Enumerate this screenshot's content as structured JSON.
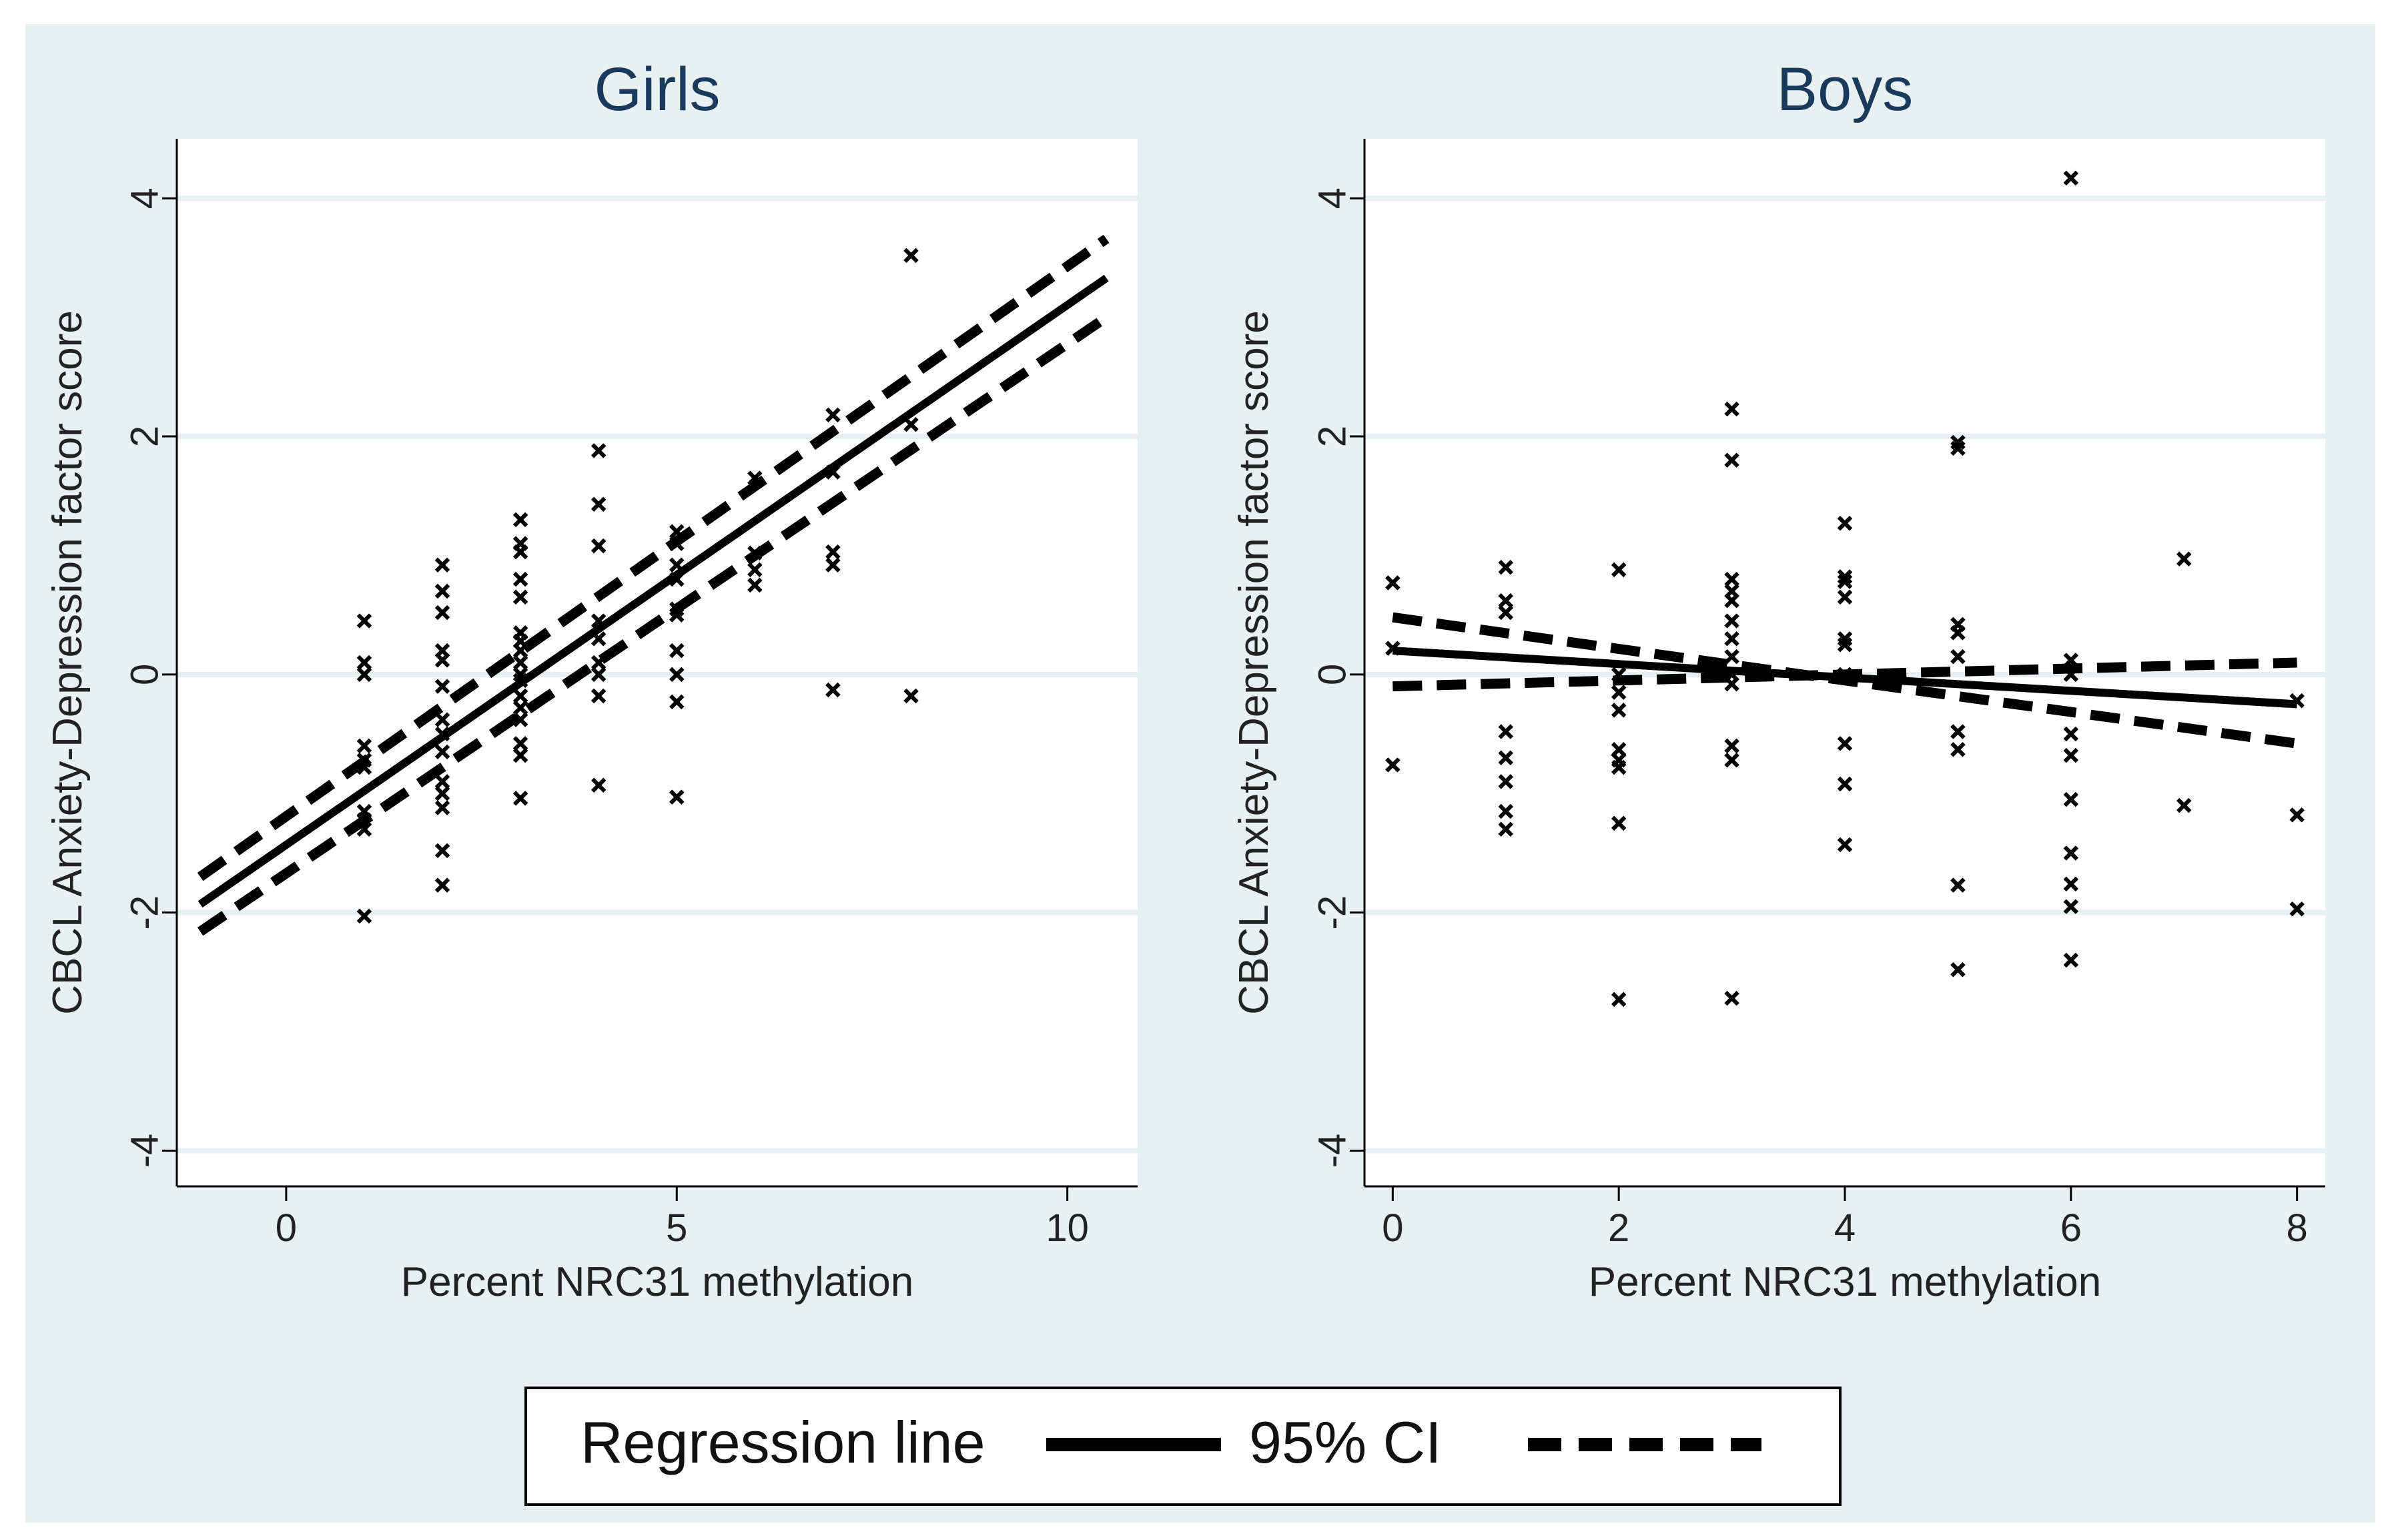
{
  "chart_data": [
    {
      "type": "scatter",
      "title": "Girls",
      "xlabel": "Percent NRC31 methylation",
      "ylabel": "CBCL Anxiety-Depression factor score",
      "xlim": [
        -1.4,
        10.9
      ],
      "ylim": [
        -4.3,
        4.5
      ],
      "xticks": [
        0,
        5,
        10
      ],
      "yticks": [
        -4,
        -2,
        0,
        2,
        4
      ],
      "grid": true,
      "points": [
        [
          1,
          0.45
        ],
        [
          1,
          0.1
        ],
        [
          1,
          0.0
        ],
        [
          1,
          -0.6
        ],
        [
          1,
          -0.72
        ],
        [
          1,
          -0.78
        ],
        [
          1,
          -1.15
        ],
        [
          1,
          -1.22
        ],
        [
          1,
          -1.3
        ],
        [
          1,
          -2.03
        ],
        [
          2,
          0.92
        ],
        [
          2,
          0.7
        ],
        [
          2,
          0.52
        ],
        [
          2,
          0.2
        ],
        [
          2,
          0.12
        ],
        [
          2,
          -0.1
        ],
        [
          2,
          -0.38
        ],
        [
          2,
          -0.5
        ],
        [
          2,
          -0.65
        ],
        [
          2,
          -0.9
        ],
        [
          2,
          -1.0
        ],
        [
          2,
          -1.12
        ],
        [
          2,
          -1.48
        ],
        [
          2,
          -1.77
        ],
        [
          3,
          1.3
        ],
        [
          3,
          1.1
        ],
        [
          3,
          1.03
        ],
        [
          3,
          0.8
        ],
        [
          3,
          0.65
        ],
        [
          3,
          0.35
        ],
        [
          3,
          0.28
        ],
        [
          3,
          0.2
        ],
        [
          3,
          0.1
        ],
        [
          3,
          0.0
        ],
        [
          3,
          -0.05
        ],
        [
          3,
          -0.18
        ],
        [
          3,
          -0.28
        ],
        [
          3,
          -0.38
        ],
        [
          3,
          -0.58
        ],
        [
          3,
          -0.68
        ],
        [
          3,
          -1.04
        ],
        [
          4,
          1.88
        ],
        [
          4,
          1.43
        ],
        [
          4,
          1.08
        ],
        [
          4,
          0.45
        ],
        [
          4,
          0.3
        ],
        [
          4,
          0.1
        ],
        [
          4,
          0.0
        ],
        [
          4,
          -0.18
        ],
        [
          4,
          -0.93
        ],
        [
          5,
          1.2
        ],
        [
          5,
          1.1
        ],
        [
          5,
          0.92
        ],
        [
          5,
          0.8
        ],
        [
          5,
          0.55
        ],
        [
          5,
          0.5
        ],
        [
          5,
          0.2
        ],
        [
          5,
          0.0
        ],
        [
          5,
          -0.23
        ],
        [
          5,
          -1.03
        ],
        [
          6,
          1.65
        ],
        [
          6,
          1.02
        ],
        [
          6,
          0.88
        ],
        [
          6,
          0.75
        ],
        [
          7,
          2.18
        ],
        [
          7,
          1.7
        ],
        [
          7,
          1.03
        ],
        [
          7,
          0.92
        ],
        [
          7,
          -0.13
        ],
        [
          8,
          3.52
        ],
        [
          8,
          2.1
        ],
        [
          8,
          -0.18
        ]
      ],
      "series": [
        {
          "name": "Regression line",
          "x": [
            -1.1,
            10.5
          ],
          "values": [
            -1.93,
            3.33
          ]
        },
        {
          "name": "95% CI upper",
          "x": [
            -1.1,
            10.5
          ],
          "values": [
            -1.7,
            3.66
          ]
        },
        {
          "name": "95% CI lower",
          "x": [
            -1.1,
            10.5
          ],
          "values": [
            -2.16,
            3.0
          ]
        }
      ]
    },
    {
      "type": "scatter",
      "title": "Boys",
      "xlabel": "Percent NRC31 methylation",
      "ylabel": "CBCL Anxiety-Depression factor score",
      "xlim": [
        -0.25,
        8.25
      ],
      "ylim": [
        -4.3,
        4.5
      ],
      "xticks": [
        0,
        2,
        4,
        6,
        8
      ],
      "yticks": [
        -4,
        -2,
        0,
        2,
        4
      ],
      "grid": true,
      "points": [
        [
          0,
          0.77
        ],
        [
          0,
          0.22
        ],
        [
          0,
          -0.76
        ],
        [
          1,
          0.9
        ],
        [
          1,
          0.62
        ],
        [
          1,
          0.52
        ],
        [
          1,
          -0.48
        ],
        [
          1,
          -0.7
        ],
        [
          1,
          -0.9
        ],
        [
          1,
          -1.15
        ],
        [
          1,
          -1.3
        ],
        [
          2,
          0.88
        ],
        [
          2,
          0.0
        ],
        [
          2,
          -0.15
        ],
        [
          2,
          -0.3
        ],
        [
          2,
          -0.63
        ],
        [
          2,
          -0.72
        ],
        [
          2,
          -0.78
        ],
        [
          2,
          -1.25
        ],
        [
          2,
          -2.73
        ],
        [
          3,
          2.23
        ],
        [
          3,
          1.8
        ],
        [
          3,
          0.8
        ],
        [
          3,
          0.7
        ],
        [
          3,
          0.62
        ],
        [
          3,
          0.45
        ],
        [
          3,
          0.3
        ],
        [
          3,
          0.15
        ],
        [
          3,
          0.0
        ],
        [
          3,
          -0.08
        ],
        [
          3,
          -0.6
        ],
        [
          3,
          -0.72
        ],
        [
          3,
          -2.72
        ],
        [
          4,
          1.27
        ],
        [
          4,
          0.82
        ],
        [
          4,
          0.78
        ],
        [
          4,
          0.65
        ],
        [
          4,
          0.3
        ],
        [
          4,
          0.25
        ],
        [
          4,
          0.0
        ],
        [
          4,
          -0.58
        ],
        [
          4,
          -0.92
        ],
        [
          4,
          -1.43
        ],
        [
          5,
          1.95
        ],
        [
          5,
          1.9
        ],
        [
          5,
          0.42
        ],
        [
          5,
          0.35
        ],
        [
          5,
          0.15
        ],
        [
          5,
          -0.48
        ],
        [
          5,
          -0.63
        ],
        [
          5,
          -1.77
        ],
        [
          5,
          -2.48
        ],
        [
          6,
          4.17
        ],
        [
          6,
          0.12
        ],
        [
          6,
          0.0
        ],
        [
          6,
          -0.5
        ],
        [
          6,
          -0.68
        ],
        [
          6,
          -1.05
        ],
        [
          6,
          -1.5
        ],
        [
          6,
          -1.76
        ],
        [
          6,
          -1.95
        ],
        [
          6,
          -2.4
        ],
        [
          7,
          0.97
        ],
        [
          7,
          -1.1
        ],
        [
          8,
          -0.22
        ],
        [
          8,
          -1.18
        ],
        [
          8,
          -1.97
        ]
      ],
      "series": [
        {
          "name": "Regression line",
          "x": [
            0,
            8
          ],
          "values": [
            0.2,
            -0.25
          ]
        },
        {
          "name": "95% CI upper",
          "x": [
            0,
            8
          ],
          "values": [
            0.48,
            -0.58
          ]
        },
        {
          "name": "95% CI lower",
          "x": [
            0,
            8
          ],
          "values": [
            -0.1,
            0.1
          ]
        }
      ]
    }
  ],
  "legend": {
    "regression_label": "Regression line",
    "ci_label": "95% CI"
  },
  "colors": {
    "outer_background": "#e8f0f2",
    "plot_background": "#ffffff",
    "grid": "#e8f0f2",
    "title": "#1a3a5c",
    "ink": "#000000"
  }
}
